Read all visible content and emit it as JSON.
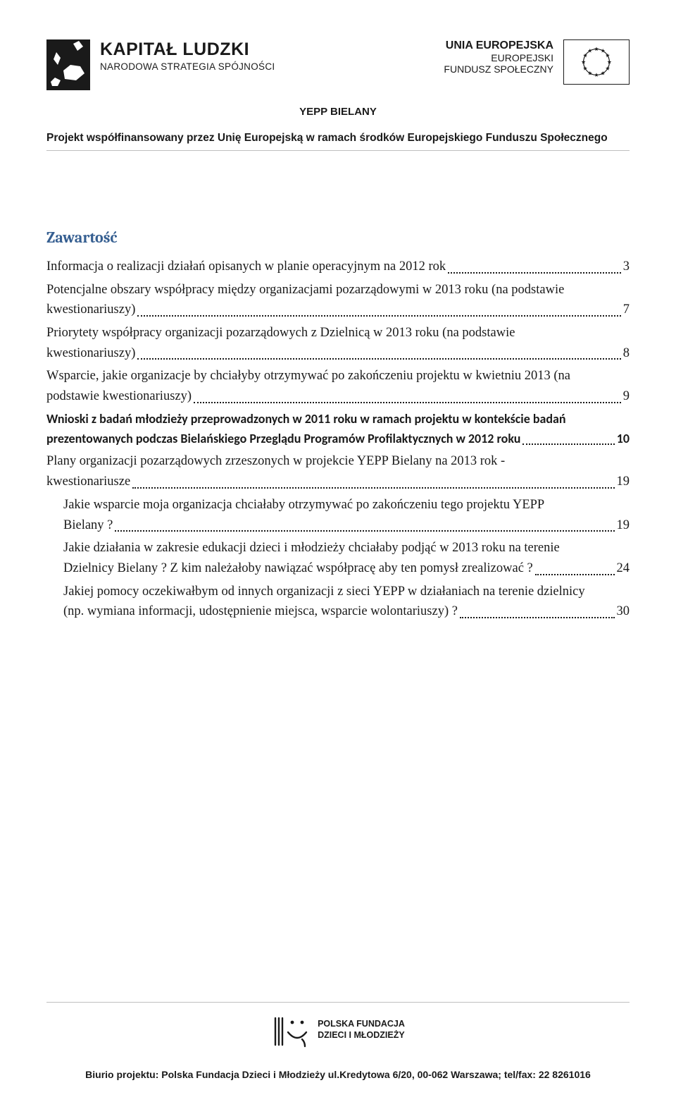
{
  "header": {
    "kapital": {
      "title": "KAPITAŁ LUDZKI",
      "subtitle": "NARODOWA STRATEGIA SPÓJNOŚCI"
    },
    "eu": {
      "line1": "UNIA EUROPEJSKA",
      "line2": "EUROPEJSKI",
      "line3": "FUNDUSZ SPOŁECZNY"
    },
    "project_title": "YEPP BIELANY",
    "funding_line": "Projekt współfinansowany przez Unię Europejską w ramach środków Europejskiego Funduszu Społecznego"
  },
  "toc": {
    "title": "Zawartość",
    "entries": [
      {
        "label": "Informacja o realizacji działań opisanych w planie operacyjnym na 2012 rok",
        "page": "3",
        "indent": false,
        "bold": false
      },
      {
        "label_lines": [
          "Potencjalne obszary współpracy między organizacjami pozarządowymi w 2013 roku (na podstawie",
          "kwestionariuszy)"
        ],
        "page": "7",
        "indent": false,
        "bold": false
      },
      {
        "label_lines": [
          "Priorytety współpracy organizacji pozarządowych z Dzielnicą w 2013 roku  (na podstawie",
          "kwestionariuszy)"
        ],
        "page": "8",
        "indent": false,
        "bold": false
      },
      {
        "label_lines": [
          "Wsparcie,  jakie organizacje by chciałyby otrzymywać po zakończeniu projektu w kwietniu 2013  (na",
          "podstawie kwestionariuszy)"
        ],
        "page": "9",
        "indent": false,
        "bold": false
      },
      {
        "label_lines": [
          "Wnioski z badań młodzieży przeprowadzonych w 2011 roku w ramach projektu w kontekście badań",
          "prezentowanych podczas Bielańskiego Przeglądu Programów Profilaktycznych w 2012 roku"
        ],
        "page": "10",
        "indent": false,
        "bold": true
      },
      {
        "label_lines": [
          "Plany organizacji pozarządowych zrzeszonych w projekcie YEPP Bielany na 2013 rok -",
          "kwestionariusze"
        ],
        "page": "19",
        "indent": false,
        "bold": false
      },
      {
        "label_lines": [
          "Jakie wsparcie moja organizacja chciałaby otrzymywać po zakończeniu tego projektu  YEPP",
          "Bielany ?"
        ],
        "page": "19",
        "indent": true,
        "bold": false
      },
      {
        "label_lines": [
          "Jakie działania w zakresie edukacji  dzieci i młodzieży chciałaby podjąć w 2013 roku  na terenie",
          "Dzielnicy Bielany ? Z kim należałoby  nawiązać współpracę aby ten pomysł zrealizować ?"
        ],
        "page": "24",
        "indent": true,
        "bold": false
      },
      {
        "label_lines": [
          "Jakiej pomocy oczekiwałbym od innych organizacji z sieci YEPP w działaniach na terenie dzielnicy",
          "(np. wymiana informacji, udostępnienie miejsca, wsparcie wolontariuszy) ?"
        ],
        "page": "30",
        "indent": true,
        "bold": false
      }
    ]
  },
  "footer": {
    "org_lines": [
      "POLSKA FUNDACJA",
      "DZIECI I MŁODZIEŻY"
    ],
    "address": "Biurio projektu: Polska Fundacja Dzieci i Młodzieży ul.Kredytowa 6/20, 00-062 Warszawa; tel/fax: 22 8261016"
  },
  "colors": {
    "heading": "#365f91",
    "text": "#1a1a1a",
    "rule": "#bfbfbf",
    "background": "#ffffff"
  },
  "typography": {
    "body_font": "Times New Roman",
    "heading_font": "Cambria",
    "header_font": "Arial",
    "toc_fontsize_pt": 14,
    "heading_fontsize_pt": 17
  }
}
